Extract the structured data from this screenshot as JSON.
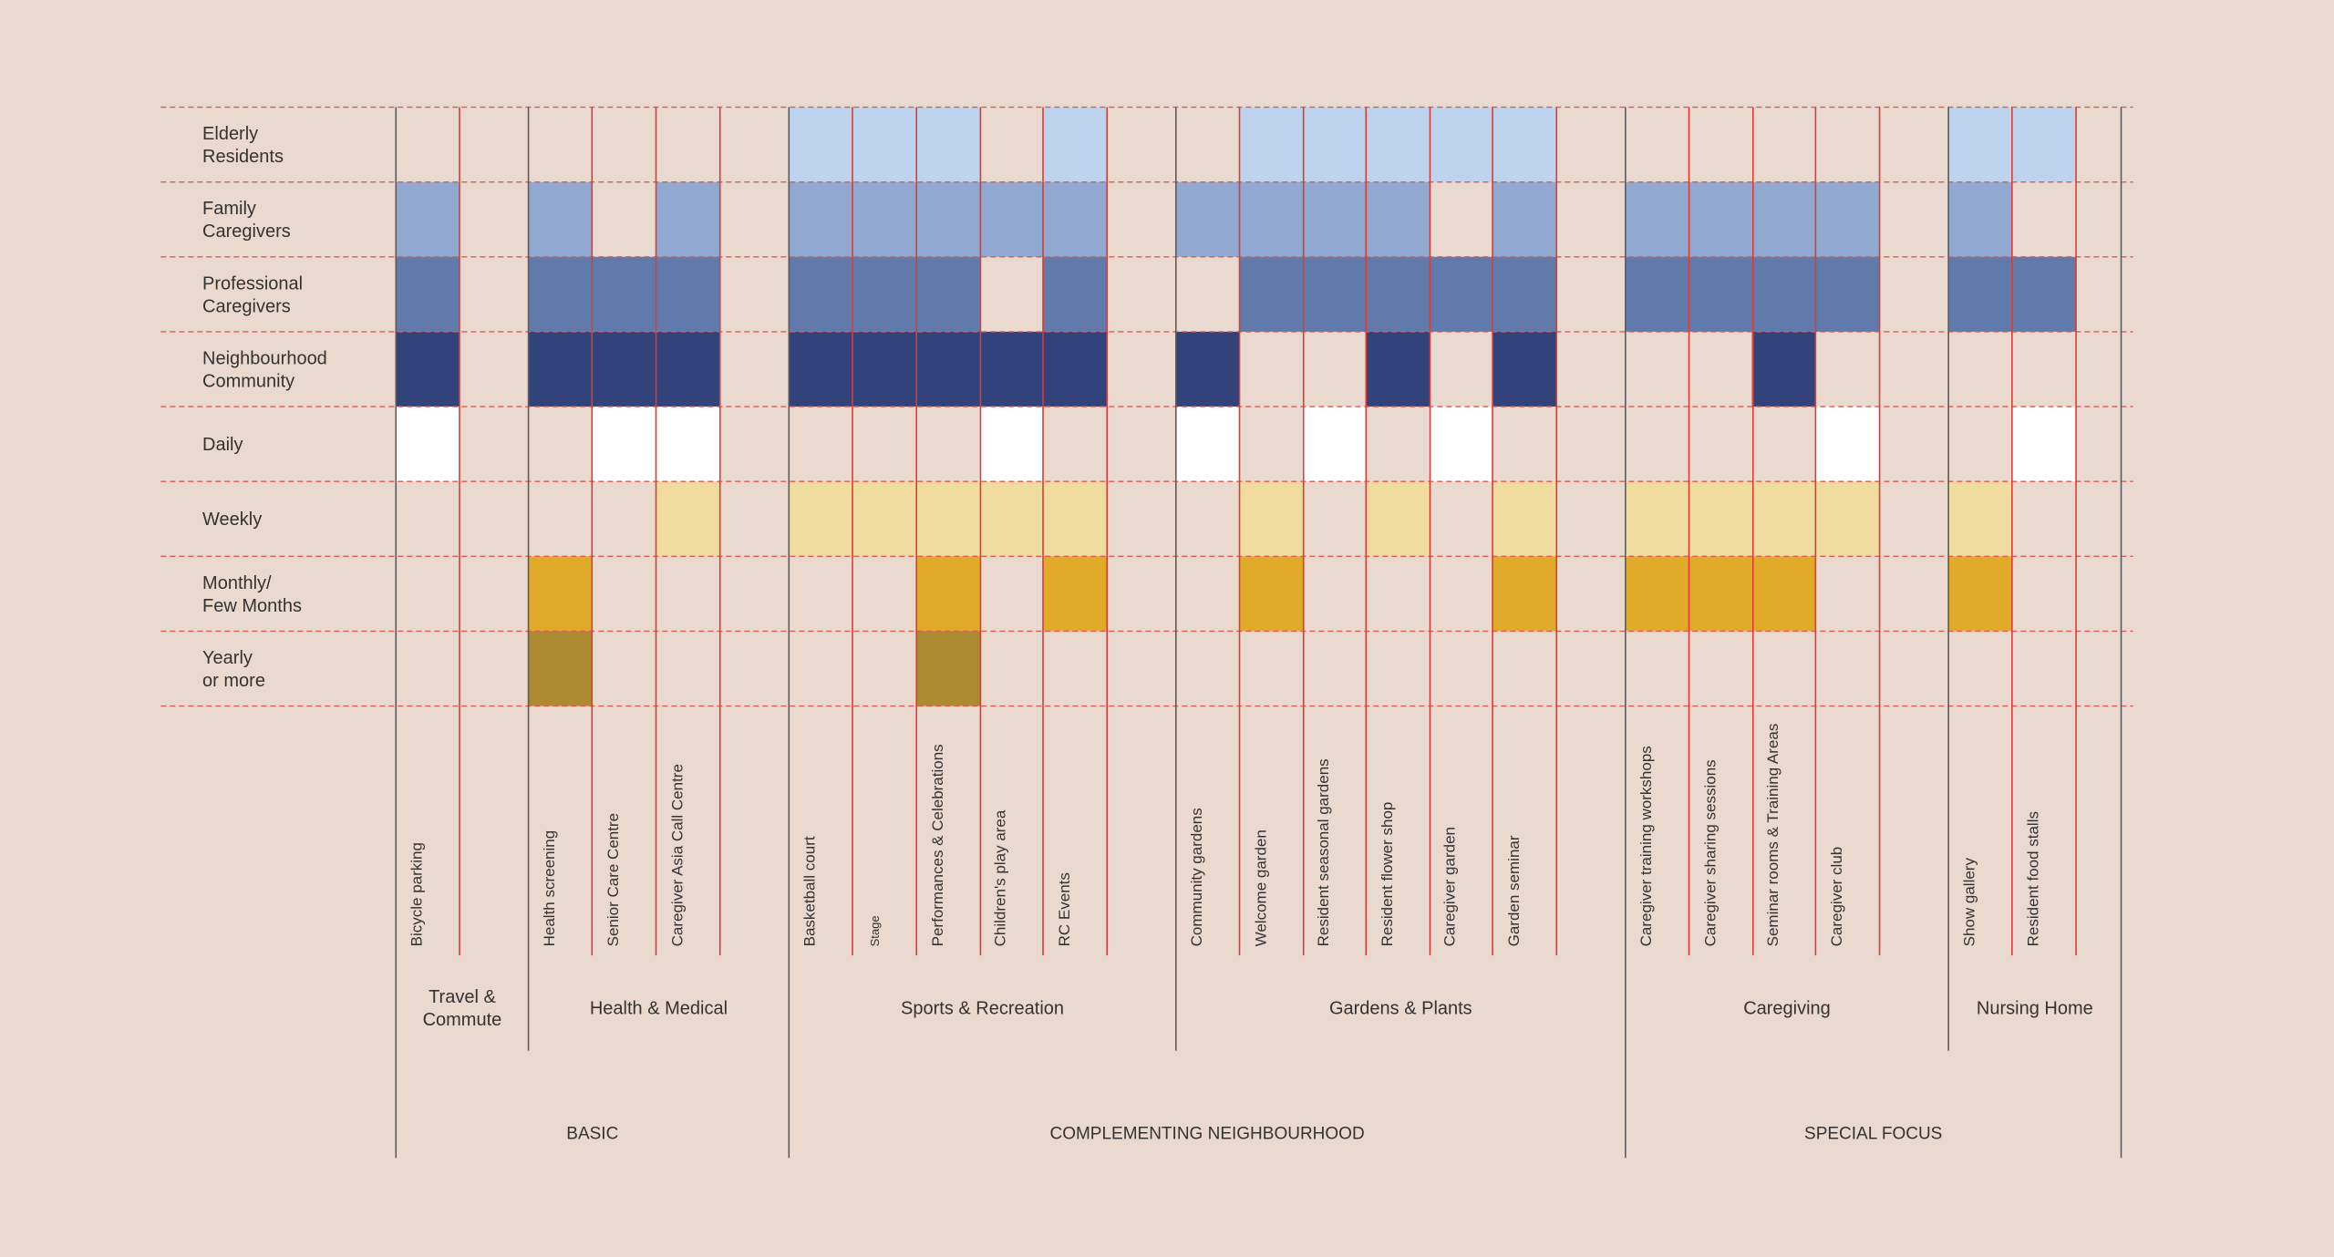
{
  "colors": {
    "background": "#ead9ce",
    "row_colors": [
      "#bdd3ee",
      "#91a9d0",
      "#5f7aab",
      "#31437a",
      "#ffffff",
      "#f1dca0",
      "#e1ab29",
      "#ac8a2f"
    ],
    "dashed_line": "#e05a56",
    "column_line": "#dd3c36",
    "section_line": "#5c5c5c",
    "text": "#333333"
  },
  "chart_data": {
    "type": "heatmap",
    "rows": [
      "Elderly\nResidents",
      "Family\nCaregivers",
      "Professional\nCaregivers",
      "Neighbourhood\nCommunity",
      "Daily",
      "Weekly",
      "Monthly/\nFew Months",
      "Yearly\nor more"
    ],
    "columns": [
      "Bicycle parking",
      "Health screening",
      "Senior Care Centre",
      "Caregiver Asia Call Centre",
      "Basketball court",
      "Stage",
      "Performances & Celebrations",
      "Children's play area",
      "RC Events",
      "Community gardens",
      "Welcome garden",
      "Resident seasonal gardens",
      "Resident flower shop",
      "Caregiver garden",
      "Garden seminar",
      "Caregiver training workshops",
      "Caregiver sharing sessions",
      "Seminar rooms & Training Areas",
      "Caregiver club",
      "Show gallery",
      "Resident food stalls"
    ],
    "categories": [
      {
        "name": "Travel &\nCommute",
        "columns": [
          "Bicycle parking"
        ]
      },
      {
        "name": "Health & Medical",
        "columns": [
          "Health screening",
          "Senior Care Centre",
          "Caregiver Asia Call Centre"
        ]
      },
      {
        "name": "Sports & Recreation",
        "columns": [
          "Basketball court",
          "Stage",
          "Performances & Celebrations",
          "Children's play area",
          "RC Events"
        ]
      },
      {
        "name": "Gardens & Plants",
        "columns": [
          "Community gardens",
          "Welcome garden",
          "Resident seasonal gardens",
          "Resident flower shop",
          "Caregiver garden",
          "Garden seminar"
        ]
      },
      {
        "name": "Caregiving",
        "columns": [
          "Caregiver training workshops",
          "Caregiver sharing sessions",
          "Seminar rooms & Training Areas",
          "Caregiver club"
        ]
      },
      {
        "name": "Nursing Home",
        "columns": [
          "Show gallery",
          "Resident food stalls"
        ]
      }
    ],
    "groups": [
      {
        "name": "BASIC",
        "categories": [
          "Travel &\nCommute",
          "Health & Medical"
        ]
      },
      {
        "name": "COMPLEMENTING NEIGHBOURHOOD",
        "categories": [
          "Sports & Recreation",
          "Gardens & Plants"
        ]
      },
      {
        "name": "SPECIAL FOCUS",
        "categories": [
          "Caregiving",
          "Nursing Home"
        ]
      }
    ],
    "matrix": [
      [
        0,
        0,
        0,
        0,
        1,
        1,
        1,
        0,
        1,
        0,
        1,
        1,
        1,
        1,
        1,
        0,
        0,
        0,
        0,
        1,
        1
      ],
      [
        1,
        1,
        0,
        1,
        1,
        1,
        1,
        1,
        1,
        1,
        1,
        1,
        1,
        0,
        1,
        1,
        1,
        1,
        1,
        1,
        0
      ],
      [
        1,
        1,
        1,
        1,
        1,
        1,
        1,
        0,
        1,
        0,
        1,
        1,
        1,
        1,
        1,
        1,
        1,
        1,
        1,
        1,
        1
      ],
      [
        1,
        1,
        1,
        1,
        1,
        1,
        1,
        1,
        1,
        1,
        0,
        0,
        1,
        0,
        1,
        0,
        0,
        1,
        0,
        0,
        0
      ],
      [
        1,
        0,
        1,
        1,
        0,
        0,
        0,
        1,
        0,
        1,
        0,
        1,
        0,
        1,
        0,
        0,
        0,
        0,
        1,
        0,
        1
      ],
      [
        0,
        0,
        0,
        1,
        1,
        1,
        1,
        1,
        1,
        0,
        1,
        0,
        1,
        0,
        1,
        1,
        1,
        1,
        1,
        1,
        0
      ],
      [
        0,
        1,
        0,
        0,
        0,
        0,
        1,
        0,
        1,
        0,
        1,
        0,
        0,
        0,
        1,
        1,
        1,
        1,
        0,
        1,
        0
      ],
      [
        0,
        1,
        0,
        0,
        0,
        0,
        1,
        0,
        0,
        0,
        0,
        0,
        0,
        0,
        0,
        0,
        0,
        0,
        0,
        0,
        0
      ]
    ]
  }
}
